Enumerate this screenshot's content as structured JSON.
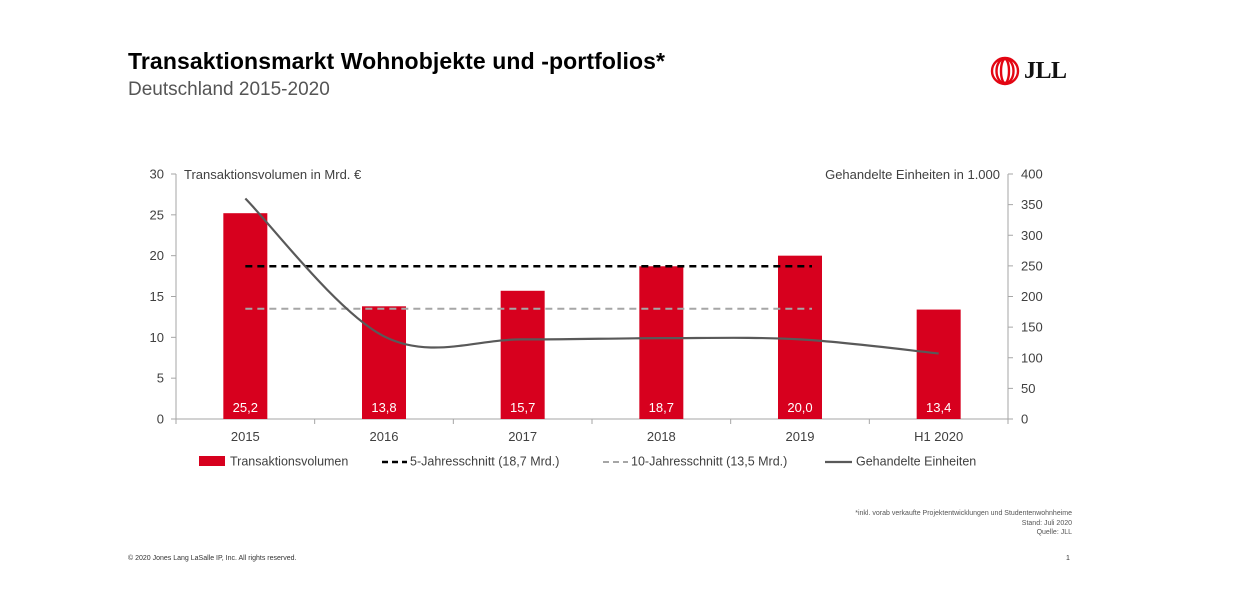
{
  "header": {
    "title": "Transaktionsmarkt Wohnobjekte und -portfolios*",
    "subtitle": "Deutschland 2015-2020"
  },
  "logo": {
    "text": "JLL",
    "icon": "jll-flame-logo-icon",
    "color": "#e30613"
  },
  "chart_data": {
    "type": "bar",
    "categories": [
      "2015",
      "2016",
      "2017",
      "2018",
      "2019",
      "H1 2020"
    ],
    "y_left_label": "Transaktionsvolumen  in  Mrd. €",
    "y_right_label": "Gehandelte  Einheiten  in 1.000",
    "y_left_range": [
      0,
      30
    ],
    "y_left_ticks": [
      "0",
      "5",
      "10",
      "15",
      "20",
      "25",
      "30"
    ],
    "y_right_range": [
      0,
      400
    ],
    "y_right_ticks": [
      "0",
      "50",
      "100",
      "150",
      "200",
      "250",
      "300",
      "350",
      "400"
    ],
    "series": [
      {
        "name": "Transaktionsvolumen",
        "kind": "bar",
        "axis": "left",
        "color": "#d7001e",
        "values": [
          25.2,
          13.8,
          15.7,
          18.7,
          20.0,
          13.4
        ],
        "labels": [
          "25,2",
          "13,8",
          "15,7",
          "18,7",
          "20,0",
          "13,4"
        ]
      },
      {
        "name": "5-Jahresschnitt (18,7 Mrd.)",
        "kind": "dashed-line",
        "axis": "left",
        "color": "#000000",
        "value": 18.7,
        "span": [
          "2015",
          "2019"
        ]
      },
      {
        "name": "10-Jahresschnitt (13,5 Mrd.)",
        "kind": "dashed-line",
        "axis": "left",
        "color": "#a6a6a6",
        "value": 13.5,
        "span": [
          "2015",
          "2019"
        ]
      },
      {
        "name": "Gehandelte Einheiten",
        "kind": "line",
        "axis": "right",
        "color": "#595959",
        "values": [
          360,
          135,
          130,
          132,
          130,
          107
        ]
      }
    ],
    "legend_position": "bottom",
    "grid": false
  },
  "footnotes": [
    "*inkl. vorab verkaufte  Projektentwicklungen  und  Studentenwohnheime",
    "Stand: Juli 2020",
    "Quelle: JLL"
  ],
  "footer": {
    "copyright": "© 2020 Jones  Lang  LaSalle IP, Inc. All rights reserved.",
    "page": "1"
  }
}
